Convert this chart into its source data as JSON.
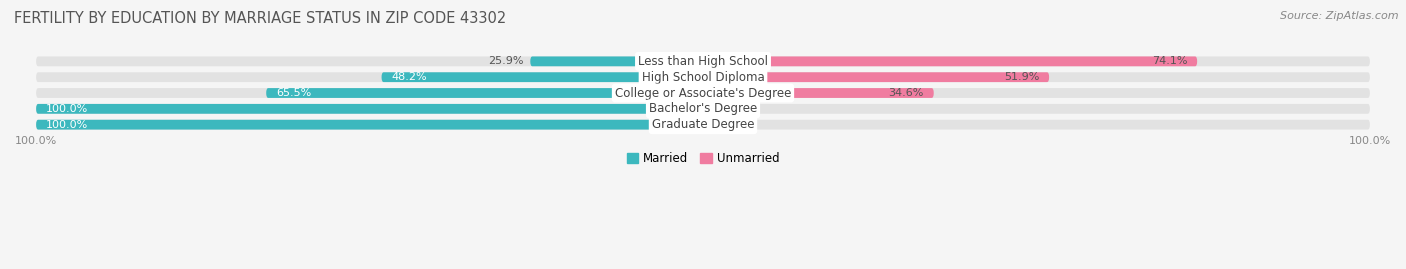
{
  "title": "FERTILITY BY EDUCATION BY MARRIAGE STATUS IN ZIP CODE 43302",
  "source": "Source: ZipAtlas.com",
  "categories": [
    "Less than High School",
    "High School Diploma",
    "College or Associate's Degree",
    "Bachelor's Degree",
    "Graduate Degree"
  ],
  "married": [
    25.9,
    48.2,
    65.5,
    100.0,
    100.0
  ],
  "unmarried": [
    74.1,
    51.9,
    34.6,
    0.0,
    0.0
  ],
  "married_color": "#3CB8BE",
  "unmarried_color": "#F07CA0",
  "bar_bg_color": "#E2E2E2",
  "row_bg_color": "#ECECEC",
  "fig_bg_color": "#F5F5F5",
  "bar_height": 0.62,
  "title_fontsize": 10.5,
  "label_fontsize": 8.5,
  "pct_fontsize": 8.0,
  "tick_fontsize": 8,
  "source_fontsize": 8
}
